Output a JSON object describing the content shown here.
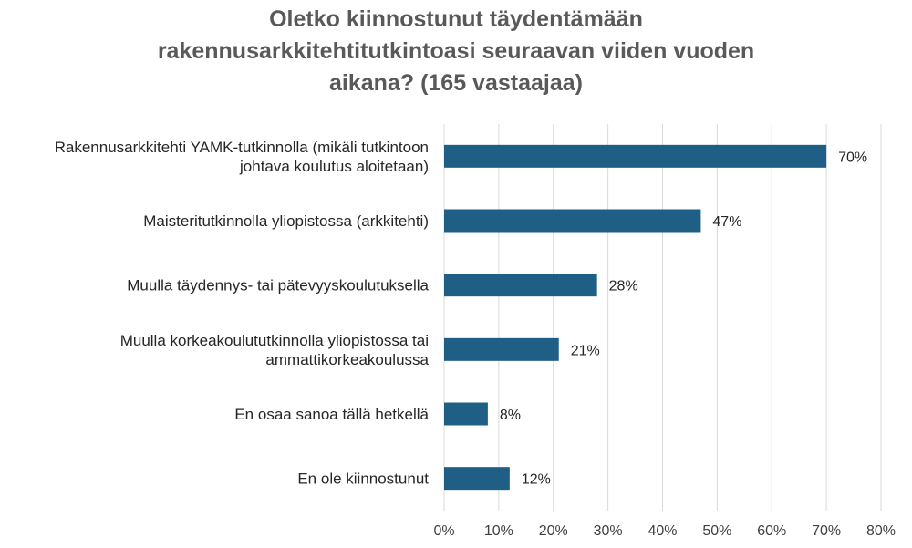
{
  "chart_data": {
    "type": "bar",
    "orientation": "horizontal",
    "title_lines": [
      "Oletko kiinnostunut täydentämään",
      "rakennusarkkitehtitutkintoasi seuraavan viiden vuoden",
      "aikana? (165 vastaajaa)"
    ],
    "categories": [
      [
        "Rakennusarkkitehti YAMK-tutkinnolla (mikäli tutkintoon",
        "johtava koulutus aloitetaan)"
      ],
      [
        "Maisteritutkinnolla yliopistossa (arkkitehti)"
      ],
      [
        "Muulla täydennys- tai pätevyyskoulutuksella"
      ],
      [
        "Muulla korkeakoulututkinnolla yliopistossa tai",
        "ammattikorkeakoulussa"
      ],
      [
        "En osaa sanoa tällä hetkellä"
      ],
      [
        "En ole kiinnostunut"
      ]
    ],
    "values": [
      70,
      47,
      28,
      21,
      8,
      12
    ],
    "data_labels": [
      "70%",
      "47%",
      "28%",
      "21%",
      "8%",
      "12%"
    ],
    "xlim": [
      0,
      80
    ],
    "xticks": [
      "0%",
      "10%",
      "20%",
      "30%",
      "40%",
      "50%",
      "60%",
      "70%",
      "80%"
    ],
    "bar_color": "#1f5f86",
    "grid": "vertical",
    "legend": "none"
  }
}
